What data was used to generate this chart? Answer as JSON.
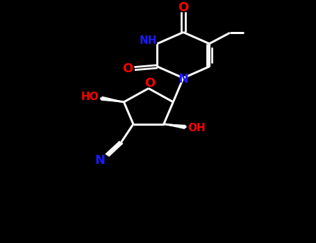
{
  "bg_color": "#000000",
  "bond_color": "#ffffff",
  "O_color": "#ff0000",
  "N_color": "#1a1aff",
  "figsize": [
    4.55,
    3.5
  ],
  "dpi": 100,
  "xlim": [
    0,
    10
  ],
  "ylim": [
    0,
    10
  ]
}
